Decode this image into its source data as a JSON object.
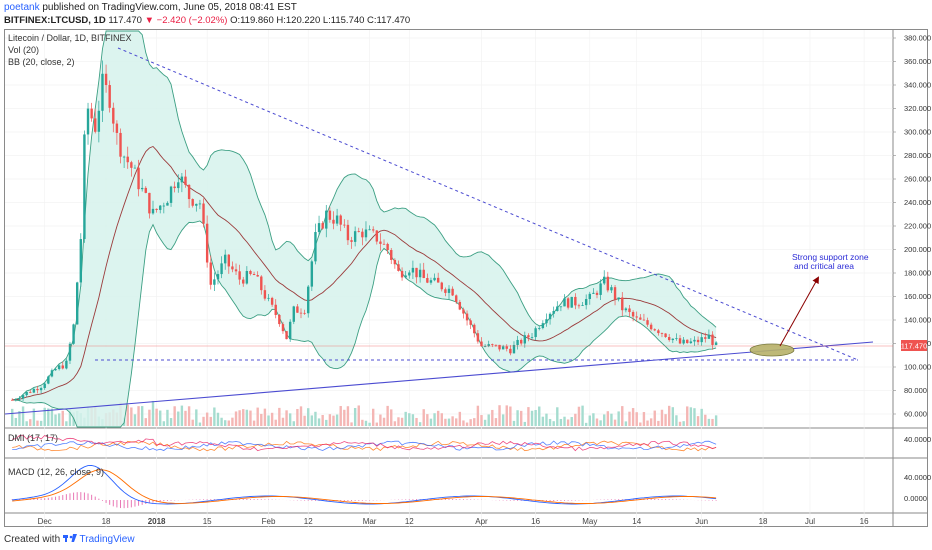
{
  "header": {
    "publisher": "poetank",
    "published_line": "published on TradingView.com, June 05, 2018 08:41 EST",
    "symbol": "BITFINEX:LTCUSD, 1D",
    "last": "117.470",
    "change": "▼ −2.420 (−2.02%)",
    "ohlc": "O:119.860 H:120.220 L:115.740 C:117.470"
  },
  "legend": {
    "title": "Litecoin / Dollar, 1D, BITFINEX",
    "vol": "Vol (20)",
    "bb": "BB (20, close, 2)",
    "dmi": "DMI (17, 17)",
    "macd": "MACD (12, 26, close, 9)"
  },
  "annotation": {
    "line1": "Strong support zone",
    "line2": "and critical area"
  },
  "price_label": "117.470",
  "footer": {
    "created_with": "Created with",
    "brand": "TradingView"
  },
  "colors": {
    "up": "#26a69a",
    "down": "#ef5350",
    "bb": "#3c9f83",
    "bbfill": "#d6f2ec",
    "basis": "#9b3b3b",
    "trend": "#4b4bd1",
    "arrow": "#8b0000",
    "ellipse": "#b7b26a"
  },
  "chart_data": [
    {
      "type": "candlestick",
      "title": "Litecoin / Dollar, 1D, BITFINEX",
      "price_axis": [
        60,
        80,
        100,
        120,
        140,
        160,
        180,
        200,
        220,
        240,
        260,
        280,
        300,
        320,
        340,
        360,
        380
      ],
      "price_axis_labels": [
        "60.000",
        "80.000",
        "100.000",
        "120.000",
        "140.000",
        "160.000",
        "180.000",
        "200.000",
        "220.000",
        "240.000",
        "260.000",
        "280.000",
        "300.000",
        "320.000",
        "340.000",
        "360.000",
        "380.000"
      ],
      "ylim": [
        60,
        385
      ],
      "time_labels": [
        "Dec",
        "18",
        "2018",
        "15",
        "Feb",
        "12",
        "Mar",
        "12",
        "Apr",
        "16",
        "May",
        "14",
        "Jun",
        "18",
        "Jul",
        "16"
      ],
      "time_ticks": [
        "2017-12-01",
        "2017-12-18",
        "2018-01-01",
        "2018-01-15",
        "2018-02-01",
        "2018-02-12",
        "2018-03-01",
        "2018-03-12",
        "2018-04-01",
        "2018-04-16",
        "2018-05-01",
        "2018-05-14",
        "2018-06-01",
        "2018-06-18",
        "2018-07-01",
        "2018-07-16"
      ],
      "close_path": [
        {
          "date": "2017-11-22",
          "close": 72
        },
        {
          "date": "2017-11-26",
          "close": 78
        },
        {
          "date": "2017-11-30",
          "close": 84
        },
        {
          "date": "2017-12-04",
          "close": 98
        },
        {
          "date": "2017-12-07",
          "close": 103
        },
        {
          "date": "2017-12-09",
          "close": 135
        },
        {
          "date": "2017-12-11",
          "close": 210
        },
        {
          "date": "2017-12-12",
          "close": 290
        },
        {
          "date": "2017-12-13",
          "close": 320
        },
        {
          "date": "2017-12-15",
          "close": 305
        },
        {
          "date": "2017-12-17",
          "close": 340
        },
        {
          "date": "2017-12-19",
          "close": 330
        },
        {
          "date": "2017-12-21",
          "close": 295
        },
        {
          "date": "2017-12-23",
          "close": 280
        },
        {
          "date": "2017-12-25",
          "close": 270
        },
        {
          "date": "2017-12-28",
          "close": 250
        },
        {
          "date": "2017-12-31",
          "close": 230
        },
        {
          "date": "2018-01-04",
          "close": 245
        },
        {
          "date": "2018-01-07",
          "close": 265
        },
        {
          "date": "2018-01-10",
          "close": 245
        },
        {
          "date": "2018-01-13",
          "close": 240
        },
        {
          "date": "2018-01-16",
          "close": 170
        },
        {
          "date": "2018-01-20",
          "close": 190
        },
        {
          "date": "2018-01-24",
          "close": 175
        },
        {
          "date": "2018-01-28",
          "close": 178
        },
        {
          "date": "2018-02-01",
          "close": 155
        },
        {
          "date": "2018-02-04",
          "close": 140
        },
        {
          "date": "2018-02-06",
          "close": 125
        },
        {
          "date": "2018-02-08",
          "close": 148
        },
        {
          "date": "2018-02-11",
          "close": 150
        },
        {
          "date": "2018-02-14",
          "close": 210
        },
        {
          "date": "2018-02-17",
          "close": 230
        },
        {
          "date": "2018-02-20",
          "close": 225
        },
        {
          "date": "2018-02-23",
          "close": 210
        },
        {
          "date": "2018-02-27",
          "close": 215
        },
        {
          "date": "2018-03-03",
          "close": 210
        },
        {
          "date": "2018-03-06",
          "close": 200
        },
        {
          "date": "2018-03-09",
          "close": 180
        },
        {
          "date": "2018-03-12",
          "close": 185
        },
        {
          "date": "2018-03-16",
          "close": 175
        },
        {
          "date": "2018-03-20",
          "close": 170
        },
        {
          "date": "2018-03-24",
          "close": 165
        },
        {
          "date": "2018-03-28",
          "close": 140
        },
        {
          "date": "2018-04-01",
          "close": 118
        },
        {
          "date": "2018-04-05",
          "close": 117
        },
        {
          "date": "2018-04-09",
          "close": 115
        },
        {
          "date": "2018-04-12",
          "close": 122
        },
        {
          "date": "2018-04-15",
          "close": 128
        },
        {
          "date": "2018-04-19",
          "close": 145
        },
        {
          "date": "2018-04-23",
          "close": 155
        },
        {
          "date": "2018-04-27",
          "close": 155
        },
        {
          "date": "2018-05-01",
          "close": 158
        },
        {
          "date": "2018-05-05",
          "close": 172
        },
        {
          "date": "2018-05-07",
          "close": 165
        },
        {
          "date": "2018-05-10",
          "close": 150
        },
        {
          "date": "2018-05-14",
          "close": 140
        },
        {
          "date": "2018-05-18",
          "close": 135
        },
        {
          "date": "2018-05-22",
          "close": 128
        },
        {
          "date": "2018-05-26",
          "close": 120
        },
        {
          "date": "2018-05-30",
          "close": 121
        },
        {
          "date": "2018-06-03",
          "close": 126
        },
        {
          "date": "2018-06-05",
          "close": 117.47
        }
      ]
    },
    {
      "type": "line",
      "title": "DMI (17, 17)",
      "price_axis_labels": [
        "40.0000"
      ]
    },
    {
      "type": "line",
      "title": "MACD (12, 26, close, 9)",
      "price_axis_labels": [
        "40.0000",
        "0.0000"
      ]
    }
  ]
}
